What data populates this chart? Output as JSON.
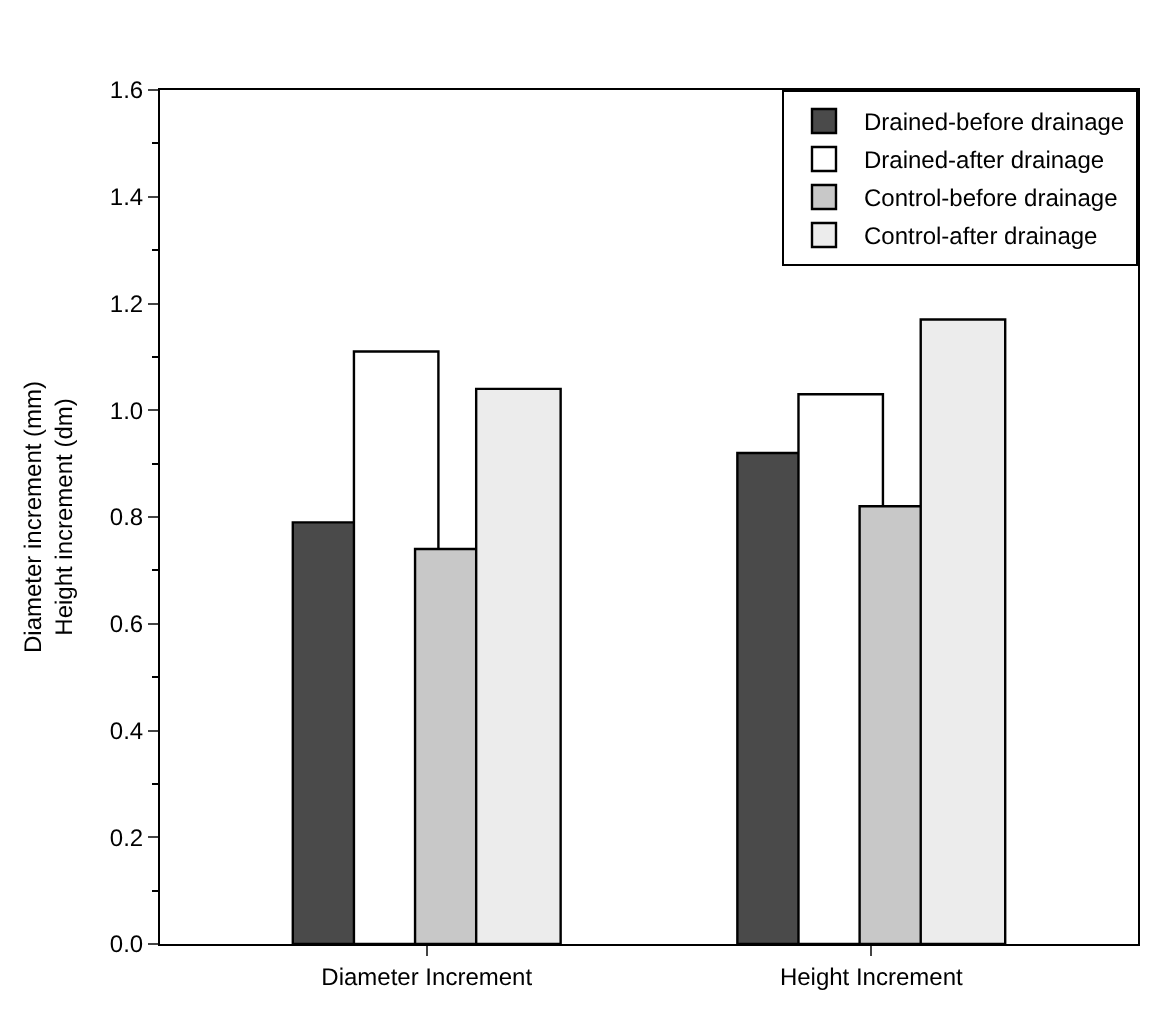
{
  "chart_data": {
    "type": "bar",
    "ylabel": "Diameter increment (mm)\nHeight increment (dm)",
    "categories": [
      "Diameter Increment",
      "Height Increment"
    ],
    "series": [
      {
        "name": "Drained-before drainage",
        "color": "#4a4a4a",
        "values": [
          0.79,
          0.92
        ]
      },
      {
        "name": "Drained-after drainage",
        "color": "#ffffff",
        "values": [
          1.11,
          1.03
        ]
      },
      {
        "name": "Control-before drainage",
        "color": "#c8c8c8",
        "values": [
          0.74,
          0.82
        ]
      },
      {
        "name": "Control-after drainage",
        "color": "#ececec",
        "values": [
          1.04,
          1.17
        ]
      }
    ],
    "ylim": [
      0,
      1.6
    ],
    "yticks": [
      {
        "value": 0,
        "label": "0.0"
      },
      0.2,
      0.4,
      0.6,
      0.8,
      {
        "value": 1,
        "label": "1.0"
      },
      1.2,
      1.4,
      1.6
    ],
    "legend": "top right"
  }
}
